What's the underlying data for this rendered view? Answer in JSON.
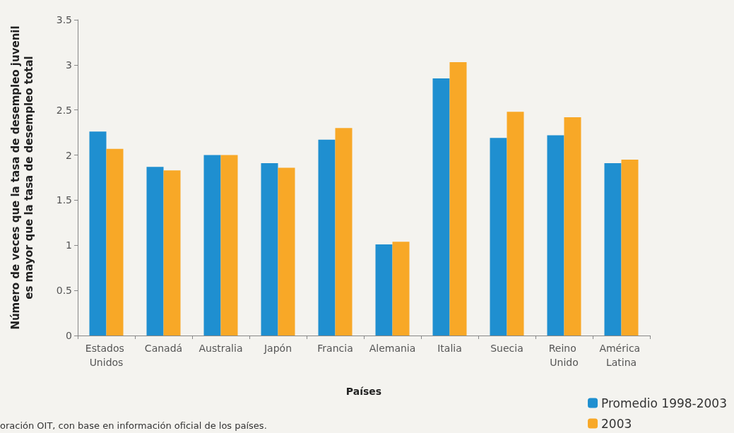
{
  "chart_data": {
    "type": "bar",
    "xlabel": "Países",
    "ylabel": "Número de veces que la tasa de desempleo juvenil es mayor que la tasa de desempleo total",
    "categories": [
      "Estados Unidos",
      "Canadá",
      "Australia",
      "Japón",
      "Francia",
      "Alemania",
      "Italia",
      "Suecia",
      "Reino Unido",
      "América Latina"
    ],
    "series": [
      {
        "name": "Promedio 1998-2003",
        "color": "#1f8fd0",
        "values": [
          2.26,
          1.87,
          2.0,
          1.91,
          2.17,
          1.01,
          2.85,
          2.19,
          2.22,
          1.91
        ]
      },
      {
        "name": "2003",
        "color": "#f8a827",
        "values": [
          2.07,
          1.83,
          2.0,
          1.86,
          2.3,
          1.04,
          3.03,
          2.48,
          2.42,
          1.95
        ]
      }
    ],
    "ylim": [
      0,
      3.5
    ],
    "yticks": [
      0,
      0.5,
      1,
      1.5,
      2,
      2.5,
      3,
      3.5
    ],
    "grid": false,
    "legend": "bottom right",
    "annotations": [
      "oración OIT, con base en información oficial de los países."
    ]
  }
}
